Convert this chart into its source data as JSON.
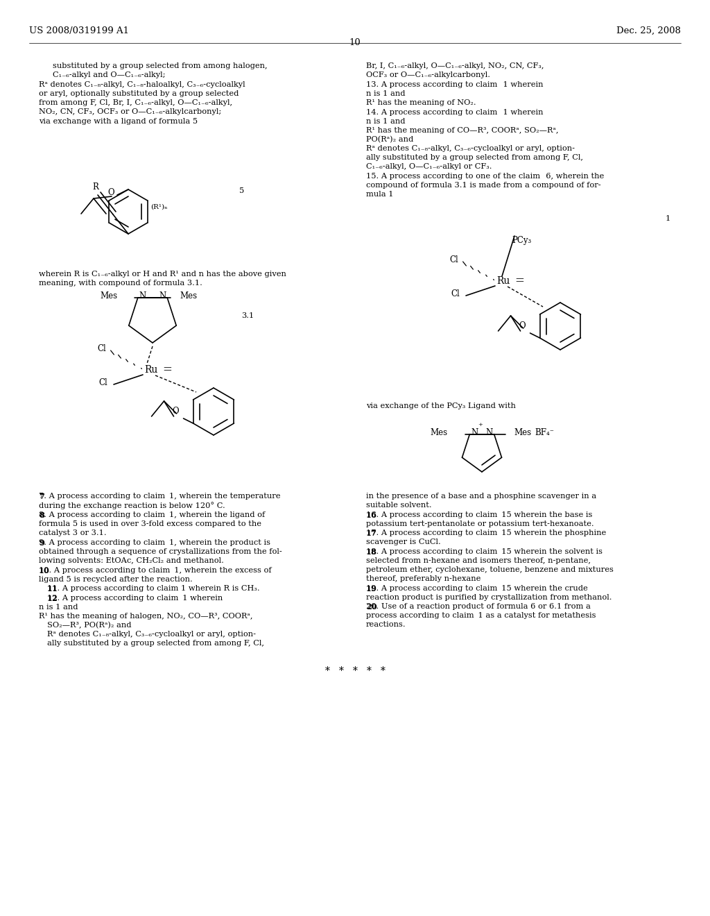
{
  "bg_color": "#ffffff",
  "header_left": "US 2008/0319199 A1",
  "header_right": "Dec. 25, 2008",
  "page_number": "10",
  "figsize": [
    10.24,
    13.2
  ],
  "dpi": 100
}
